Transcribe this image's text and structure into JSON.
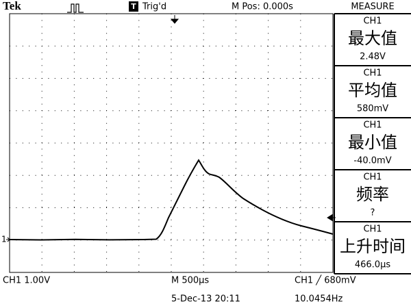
{
  "header": {
    "brand": "Tek",
    "trigger_box": "T",
    "status": "Trig'd",
    "position": "M Pos: 0.000s",
    "panel_title": "MEASURE"
  },
  "markers": {
    "ch1": "1"
  },
  "measurements": [
    {
      "channel": "CH1",
      "label": "最大值",
      "value": "2.48V"
    },
    {
      "channel": "CH1",
      "label": "平均值",
      "value": "580mV"
    },
    {
      "channel": "CH1",
      "label": "最小值",
      "value": "-40.0mV"
    },
    {
      "channel": "CH1",
      "label": "频率",
      "value": "?"
    },
    {
      "channel": "CH1",
      "label": "上升时间",
      "value": "466.0µs"
    }
  ],
  "footer": {
    "ch_scale": "CH1  1.00V",
    "time_scale": "M 500µs",
    "trigger": "CH1 ╱ 680mV",
    "date": "5-Dec-13 20:11",
    "frequency": "10.0454Hz"
  }
}
